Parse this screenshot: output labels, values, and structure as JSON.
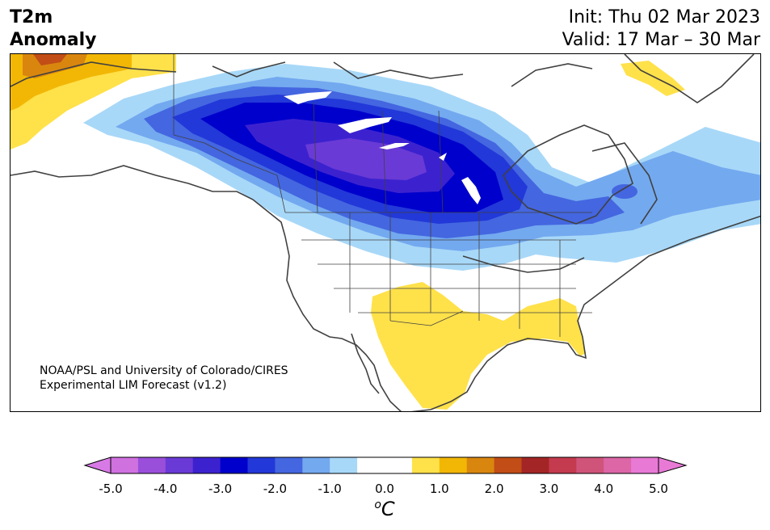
{
  "header": {
    "title_line1": "T2m",
    "title_line2": "Anomaly",
    "init_text": "Init: Thu 02 Mar 2023",
    "valid_text": "Valid: 17 Mar – 30 Mar"
  },
  "map": {
    "credit_line1": "NOAA/PSL and University of Colorado/CIRES",
    "credit_line2": "Experimental LIM Forecast (v1.2)",
    "region": "North America",
    "palette": {
      "anom_neg_3_5": "#6a3ad6",
      "anom_neg_3_0": "#0000cc",
      "anom_neg_2_5": "#2238d8",
      "anom_neg_2_0": "#4466e0",
      "anom_neg_1_5": "#73a9ef",
      "anom_neg_1_0": "#a8d8f8",
      "anom_pos_1_0": "#ffe14a",
      "anom_pos_1_5": "#f2b705",
      "anom_pos_2_0": "#d9860f",
      "anom_pos_2_5": "#c24d16",
      "land_outline": "#404040"
    }
  },
  "colorbar": {
    "tick_labels": [
      "-5.0",
      "-4.0",
      "-3.0",
      "-2.0",
      "-1.0",
      "0.0",
      "1.0",
      "2.0",
      "3.0",
      "4.0",
      "5.0"
    ],
    "unit_sup": "o",
    "unit_main": "C",
    "colors": [
      "#d071e0",
      "#9a4fdb",
      "#6a3ad6",
      "#3c22cf",
      "#0000cc",
      "#2238d8",
      "#4466e0",
      "#73a9ef",
      "#a8d8f8",
      "#ffffff",
      "#ffffff",
      "#ffe14a",
      "#f2b705",
      "#d9860f",
      "#c24d16",
      "#a42525",
      "#c43a4e",
      "#d0547a",
      "#dc66a6",
      "#e87ad6"
    ],
    "under_color": "#d87ae6",
    "over_color": "#e87ad6"
  }
}
